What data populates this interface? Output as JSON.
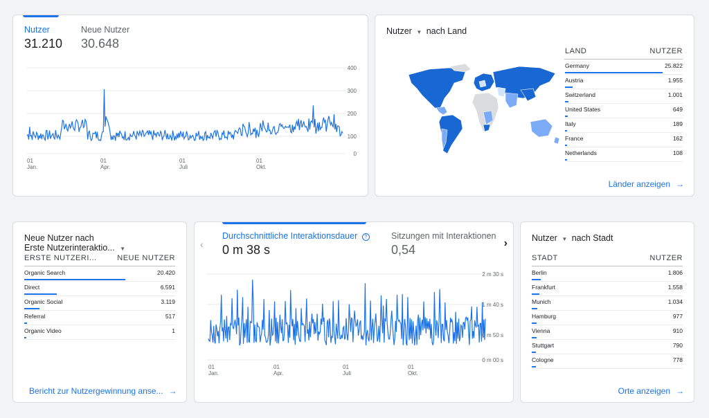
{
  "card_users": {
    "tab_users_label": "Nutzer",
    "tab_users_value": "31.210",
    "tab_new_label": "Neue Nutzer",
    "tab_new_value": "30.648",
    "y_ticks": [
      "400",
      "300",
      "200",
      "100",
      "0"
    ],
    "x_ticks": [
      {
        "day": "01",
        "month": "Jan."
      },
      {
        "day": "01",
        "month": "Apr."
      },
      {
        "day": "01",
        "month": "Juli"
      },
      {
        "day": "01",
        "month": "Okt."
      }
    ]
  },
  "card_country": {
    "title_metric": "Nutzer",
    "title_dim": "nach Land",
    "col_land": "LAND",
    "col_users": "NUTZER",
    "rows": [
      {
        "label": "Germany",
        "value": "25.822",
        "frac": 1.0
      },
      {
        "label": "Austria",
        "value": "1.955",
        "frac": 0.076
      },
      {
        "label": "Switzerland",
        "value": "1.001",
        "frac": 0.039
      },
      {
        "label": "United States",
        "value": "649",
        "frac": 0.025
      },
      {
        "label": "Italy",
        "value": "189",
        "frac": 0.007
      },
      {
        "label": "France",
        "value": "162",
        "frac": 0.006
      },
      {
        "label": "Netherlands",
        "value": "108",
        "frac": 0.004
      }
    ],
    "link": "Länder anzeigen"
  },
  "card_first_interaction": {
    "title_line1": "Neue Nutzer nach",
    "title_line2": "Erste Nutzerinteraktio...",
    "col_dim": "ERSTE NUTZERI...",
    "col_val": "NEUE NUTZER",
    "rows": [
      {
        "label": "Organic Search",
        "value": "20.420",
        "frac": 1.0
      },
      {
        "label": "Direct",
        "value": "6.591",
        "frac": 0.323
      },
      {
        "label": "Organic Social",
        "value": "3.119",
        "frac": 0.153
      },
      {
        "label": "Referral",
        "value": "517",
        "frac": 0.025
      },
      {
        "label": "Organic Video",
        "value": "1",
        "frac": 0.0
      }
    ],
    "link": "Bericht zur Nutzergewinnung anse..."
  },
  "card_engagement": {
    "tab1_label": "Durchschnittliche Interaktionsdauer",
    "tab1_value": "0 m 38 s",
    "tab2_label": "Sitzungen mit Interaktionen",
    "tab2_value": "0,54",
    "y_ticks": [
      "2 m 30 s",
      "1 m 40 s",
      "0 m 50 s",
      "0 m 00 s"
    ],
    "x_ticks": [
      {
        "day": "01",
        "month": "Jan."
      },
      {
        "day": "01",
        "month": "Apr."
      },
      {
        "day": "01",
        "month": "Juli"
      },
      {
        "day": "01",
        "month": "Okt."
      }
    ]
  },
  "card_city": {
    "title_metric": "Nutzer",
    "title_dim": "nach Stadt",
    "col_city": "STADT",
    "col_users": "NUTZER",
    "rows": [
      {
        "label": "Berlin",
        "value": "1.806",
        "frac": 0.06
      },
      {
        "label": "Frankfurt",
        "value": "1.558",
        "frac": 0.05
      },
      {
        "label": "Munich",
        "value": "1.034",
        "frac": 0.035
      },
      {
        "label": "Hamburg",
        "value": "977",
        "frac": 0.032
      },
      {
        "label": "Vienna",
        "value": "910",
        "frac": 0.03
      },
      {
        "label": "Stuttgart",
        "value": "790",
        "frac": 0.026
      },
      {
        "label": "Cologne",
        "value": "778",
        "frac": 0.026
      }
    ],
    "link": "Orte anzeigen"
  },
  "colors": {
    "accent": "#1a73e8",
    "map_high": "#1967d2",
    "map_mid": "#7baaf7",
    "map_low": "#d2e3fc",
    "map_none": "#dadce0"
  }
}
